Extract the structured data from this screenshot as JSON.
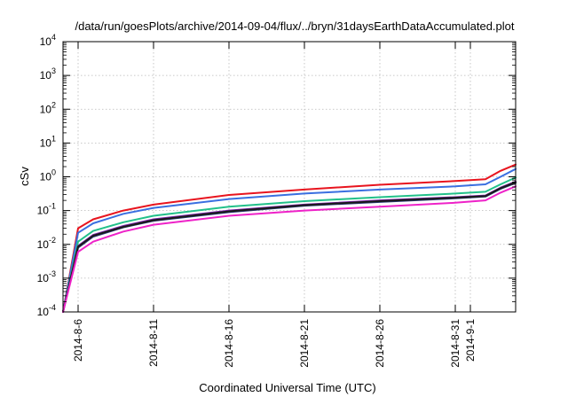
{
  "chart_data": {
    "type": "line",
    "title": "/data/run/goesPlots/archive/2014-09-04/flux/../bryn/31daysEarthDataAccumulated.plot",
    "xlabel": "Coordinated Universal Time (UTC)",
    "ylabel": "cSv",
    "y_scale": "log",
    "x_range": [
      "2014-08-05",
      "2014-09-04"
    ],
    "ylim": [
      0.0001,
      10000
    ],
    "x_ticks": [
      "2014-8-6",
      "2014-8-11",
      "2014-8-16",
      "2014-8-21",
      "2014-8-26",
      "2014-8-31",
      "2014-9-1"
    ],
    "y_ticks": [
      {
        "value": 0.0001,
        "base": "10",
        "exp": "-4"
      },
      {
        "value": 0.001,
        "base": "10",
        "exp": "-3"
      },
      {
        "value": 0.01,
        "base": "10",
        "exp": "-2"
      },
      {
        "value": 0.1,
        "base": "10",
        "exp": "-1"
      },
      {
        "value": 1,
        "base": "10",
        "exp": "0"
      },
      {
        "value": 10,
        "base": "10",
        "exp": "1"
      },
      {
        "value": 100,
        "base": "10",
        "exp": "2"
      },
      {
        "value": 1000,
        "base": "10",
        "exp": "3"
      },
      {
        "value": 10000,
        "base": "10",
        "exp": "4"
      }
    ],
    "grid": true,
    "legend": "none",
    "series": [
      {
        "color": "#e8141e",
        "x": [
          "2014-08-05",
          "2014-08-06",
          "2014-08-07",
          "2014-08-09",
          "2014-08-11",
          "2014-08-16",
          "2014-08-21",
          "2014-08-26",
          "2014-08-31",
          "2014-09-02",
          "2014-09-03",
          "2014-09-04"
        ],
        "y": [
          0.0001,
          0.03,
          0.055,
          0.1,
          0.15,
          0.29,
          0.42,
          0.58,
          0.75,
          0.85,
          1.5,
          2.3
        ]
      },
      {
        "color": "#3a6fe0",
        "x": [
          "2014-08-05",
          "2014-08-06",
          "2014-08-07",
          "2014-08-09",
          "2014-08-11",
          "2014-08-16",
          "2014-08-21",
          "2014-08-26",
          "2014-08-31",
          "2014-09-02",
          "2014-09-03",
          "2014-09-04"
        ],
        "y": [
          0.0001,
          0.022,
          0.042,
          0.08,
          0.12,
          0.22,
          0.32,
          0.42,
          0.52,
          0.6,
          1.0,
          1.7
        ]
      },
      {
        "color": "#22c08a",
        "x": [
          "2014-08-05",
          "2014-08-06",
          "2014-08-07",
          "2014-08-09",
          "2014-08-11",
          "2014-08-16",
          "2014-08-21",
          "2014-08-26",
          "2014-08-31",
          "2014-09-02",
          "2014-09-03",
          "2014-09-04"
        ],
        "y": [
          0.0001,
          0.012,
          0.025,
          0.045,
          0.07,
          0.13,
          0.19,
          0.25,
          0.32,
          0.36,
          0.6,
          0.95
        ]
      },
      {
        "color": "#7a22a8",
        "x": [
          "2014-08-05",
          "2014-08-06",
          "2014-08-07",
          "2014-08-09",
          "2014-08-11",
          "2014-08-16",
          "2014-08-21",
          "2014-08-26",
          "2014-08-31",
          "2014-09-02",
          "2014-09-03",
          "2014-09-04"
        ],
        "y": [
          0.0001,
          0.009,
          0.019,
          0.035,
          0.055,
          0.1,
          0.15,
          0.2,
          0.25,
          0.28,
          0.48,
          0.72
        ]
      },
      {
        "color": "#2d3a78",
        "x": [
          "2014-08-05",
          "2014-08-06",
          "2014-08-07",
          "2014-08-09",
          "2014-08-11",
          "2014-08-16",
          "2014-08-21",
          "2014-08-26",
          "2014-08-31",
          "2014-09-02",
          "2014-09-03",
          "2014-09-04"
        ],
        "y": [
          0.0001,
          0.008,
          0.017,
          0.032,
          0.05,
          0.09,
          0.14,
          0.18,
          0.23,
          0.26,
          0.44,
          0.66
        ]
      },
      {
        "color": "#1a1a1a",
        "x": [
          "2014-08-05",
          "2014-08-06",
          "2014-08-07",
          "2014-08-09",
          "2014-08-11",
          "2014-08-16",
          "2014-08-21",
          "2014-08-26",
          "2014-08-31",
          "2014-09-02",
          "2014-09-03",
          "2014-09-04"
        ],
        "y": [
          0.0001,
          0.0085,
          0.018,
          0.033,
          0.052,
          0.095,
          0.145,
          0.19,
          0.24,
          0.27,
          0.46,
          0.69
        ]
      },
      {
        "color": "#ee22c8",
        "x": [
          "2014-08-05",
          "2014-08-06",
          "2014-08-07",
          "2014-08-09",
          "2014-08-11",
          "2014-08-16",
          "2014-08-21",
          "2014-08-26",
          "2014-08-31",
          "2014-09-02",
          "2014-09-03",
          "2014-09-04"
        ],
        "y": [
          0.0001,
          0.006,
          0.012,
          0.024,
          0.038,
          0.07,
          0.1,
          0.13,
          0.17,
          0.2,
          0.34,
          0.52
        ]
      }
    ]
  }
}
